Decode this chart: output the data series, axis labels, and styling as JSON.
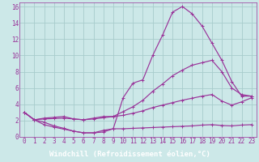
{
  "xlabel": "Windchill (Refroidissement éolien,°C)",
  "bg_color": "#cce8e8",
  "grid_color": "#a8cccc",
  "line_color": "#993399",
  "xlim": [
    -0.5,
    23.5
  ],
  "ylim": [
    0,
    16.5
  ],
  "xtick_labels": [
    "0",
    "1",
    "2",
    "3",
    "4",
    "5",
    "6",
    "7",
    "8",
    "9",
    "10",
    "11",
    "12",
    "13",
    "14",
    "15",
    "16",
    "17",
    "18",
    "19",
    "20",
    "21",
    "22",
    "23"
  ],
  "ytick_vals": [
    0,
    2,
    4,
    6,
    8,
    10,
    12,
    14,
    16
  ],
  "line1_x": [
    0,
    1,
    2,
    3,
    4,
    5,
    6,
    7,
    8,
    9,
    10,
    11,
    12,
    13,
    14,
    15,
    16,
    17,
    18,
    19,
    20,
    21,
    22,
    23
  ],
  "line1_y": [
    3.0,
    2.1,
    1.8,
    1.35,
    1.05,
    0.7,
    0.5,
    0.5,
    0.8,
    1.0,
    4.8,
    6.6,
    7.0,
    10.0,
    12.5,
    15.3,
    16.0,
    15.1,
    13.6,
    11.5,
    9.4,
    6.8,
    5.0,
    5.0
  ],
  "line2_x": [
    0,
    1,
    2,
    3,
    4,
    5,
    6,
    7,
    8,
    9,
    10,
    11,
    12,
    13,
    14,
    15,
    16,
    17,
    18,
    19,
    20,
    21,
    22,
    23
  ],
  "line2_y": [
    3.0,
    2.1,
    2.3,
    2.4,
    2.5,
    2.2,
    2.1,
    2.3,
    2.5,
    2.5,
    3.1,
    3.7,
    4.5,
    5.6,
    6.5,
    7.5,
    8.2,
    8.8,
    9.1,
    9.4,
    8.0,
    6.0,
    5.2,
    5.0
  ],
  "line3_x": [
    0,
    1,
    2,
    3,
    4,
    5,
    6,
    7,
    8,
    9,
    10,
    11,
    12,
    13,
    14,
    15,
    16,
    17,
    18,
    19,
    20,
    21,
    22,
    23
  ],
  "line3_y": [
    3.0,
    2.1,
    2.2,
    2.25,
    2.3,
    2.2,
    2.1,
    2.2,
    2.35,
    2.5,
    2.65,
    2.9,
    3.2,
    3.6,
    3.9,
    4.2,
    4.5,
    4.75,
    5.0,
    5.2,
    4.4,
    3.9,
    4.3,
    4.8
  ],
  "line4_x": [
    0,
    1,
    2,
    3,
    4,
    5,
    6,
    7,
    8,
    9,
    10,
    11,
    12,
    13,
    14,
    15,
    16,
    17,
    18,
    19,
    20,
    21,
    22,
    23
  ],
  "line4_y": [
    3.0,
    2.1,
    1.5,
    1.2,
    0.95,
    0.7,
    0.5,
    0.5,
    0.6,
    1.0,
    1.0,
    1.05,
    1.1,
    1.15,
    1.2,
    1.25,
    1.3,
    1.35,
    1.45,
    1.5,
    1.4,
    1.35,
    1.45,
    1.5
  ],
  "xlabel_fontsize": 6.5,
  "tick_fontsize": 5.5,
  "xlabel_bg": "#7a1a7a"
}
